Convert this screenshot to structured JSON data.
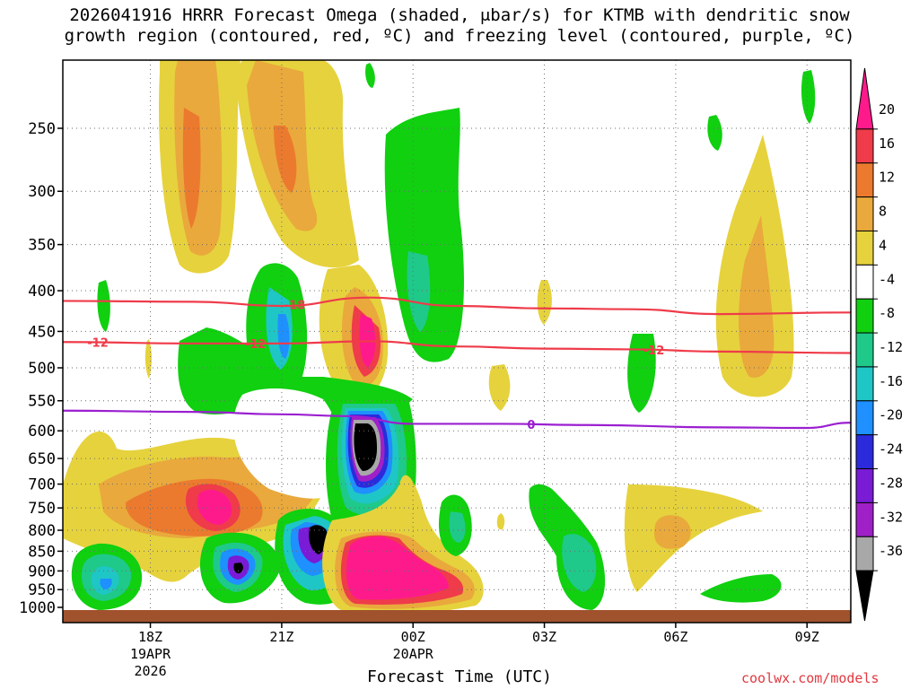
{
  "title_line1": "2026041916 HRRR Forecast Omega (shaded, μbar/s) for KTMB with dendritic snow",
  "title_line2": "growth region (contoured, red, ºC) and freezing level (contoured, purple, ºC)",
  "credit": "coolwx.com/models",
  "chart_data": {
    "type": "time-height-contour",
    "title": "2026041916 HRRR Forecast Omega (shaded, μbar/s) for KTMB with dendritic snow growth region (contoured, red, ºC) and freezing level (contoured, purple, ºC)",
    "xlabel": "Forecast Time (UTC)",
    "ylabel": "",
    "x_range_hours_from_16Z": [
      0,
      18
    ],
    "x_ticks": [
      {
        "hour": 2,
        "label": "18Z",
        "sub1": "19APR",
        "sub2": "2026"
      },
      {
        "hour": 5,
        "label": "21Z",
        "sub1": "",
        "sub2": ""
      },
      {
        "hour": 8,
        "label": "00Z",
        "sub1": "20APR",
        "sub2": ""
      },
      {
        "hour": 11,
        "label": "03Z",
        "sub1": "",
        "sub2": ""
      },
      {
        "hour": 14,
        "label": "06Z",
        "sub1": "",
        "sub2": ""
      },
      {
        "hour": 17,
        "label": "09Z",
        "sub1": "",
        "sub2": ""
      }
    ],
    "pressure_levels_hPa": [
      250,
      300,
      350,
      400,
      450,
      500,
      550,
      600,
      650,
      700,
      750,
      800,
      850,
      900,
      950,
      1000
    ],
    "colorbar": {
      "levels": [
        20,
        16,
        12,
        8,
        4,
        -4,
        -8,
        -12,
        -16,
        -20,
        -24,
        -28,
        -32,
        -36
      ],
      "bins": [
        {
          "label": "> 20",
          "color": "#ff1a8c"
        },
        {
          "label": "16 to 20",
          "color": "#ef3b4a"
        },
        {
          "label": "12 to 16",
          "color": "#eb7a2e"
        },
        {
          "label": "8 to 12",
          "color": "#e9a93c"
        },
        {
          "label": "4 to 8",
          "color": "#e6d23d"
        },
        {
          "label": "-4 to 4",
          "color": "#ffffff"
        },
        {
          "label": "-8 to -4",
          "color": "#10d010"
        },
        {
          "label": "-12 to -8",
          "color": "#1fc98a"
        },
        {
          "label": "-16 to -12",
          "color": "#1fc6c6"
        },
        {
          "label": "-20 to -16",
          "color": "#1e90ff"
        },
        {
          "label": "-24 to -20",
          "color": "#2b2bdc"
        },
        {
          "label": "-28 to -24",
          "color": "#7a1bd6"
        },
        {
          "label": "-32 to -28",
          "color": "#a020c8"
        },
        {
          "label": "-36 to -32",
          "color": "#a8a8a8"
        },
        {
          "label": "< -36",
          "color": "#000000"
        }
      ]
    },
    "contours": [
      {
        "name": "-18C isotherm",
        "color": "#ef3b4a",
        "label": "-18",
        "points": [
          [
            0,
            412
          ],
          [
            3,
            413
          ],
          [
            5,
            418
          ],
          [
            7,
            408
          ],
          [
            9,
            418
          ],
          [
            11,
            421
          ],
          [
            13,
            422
          ],
          [
            15,
            428
          ],
          [
            18,
            426
          ]
        ]
      },
      {
        "name": "-12C isotherm",
        "color": "#ef3b4a",
        "label": "-12",
        "points": [
          [
            0,
            464
          ],
          [
            3,
            466
          ],
          [
            5,
            466
          ],
          [
            7,
            463
          ],
          [
            9,
            470
          ],
          [
            11,
            473
          ],
          [
            13,
            474
          ],
          [
            15,
            477
          ],
          [
            18,
            479
          ]
        ]
      },
      {
        "name": "0C freezing level",
        "color": "#9b1fd0",
        "label": "0",
        "points": [
          [
            0,
            566
          ],
          [
            3,
            568
          ],
          [
            5,
            572
          ],
          [
            6.5,
            575
          ],
          [
            8,
            588
          ],
          [
            10,
            588
          ],
          [
            12,
            590
          ],
          [
            15,
            594
          ],
          [
            17,
            595
          ],
          [
            18,
            586
          ]
        ]
      }
    ]
  }
}
